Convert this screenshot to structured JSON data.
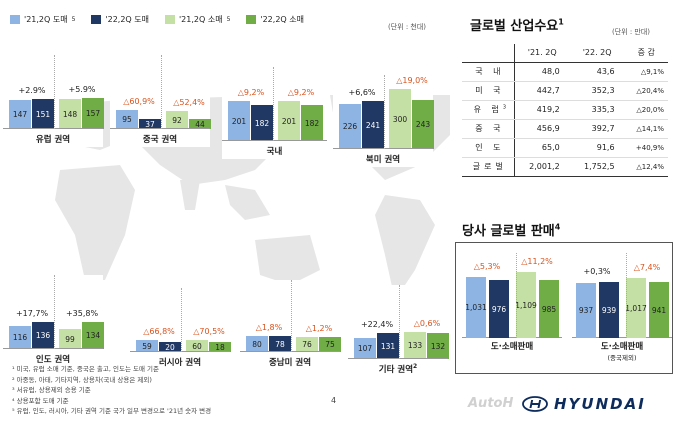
{
  "legend": {
    "items": [
      {
        "label": "'21,2Q 도매",
        "sup": "5",
        "color": "#8eb4e3"
      },
      {
        "label": "'22,2Q 도매",
        "sup": "",
        "color": "#1f3864"
      },
      {
        "label": "'21,2Q 소매",
        "sup": "5",
        "color": "#c5e0a5"
      },
      {
        "label": "'22,2Q 소매",
        "sup": "",
        "color": "#70ad47"
      }
    ]
  },
  "unit_left": "(단위 : 천대)",
  "regions": [
    {
      "name": "유럽 권역",
      "wholesale": [
        147,
        151
      ],
      "retail": [
        148,
        157
      ],
      "chg_w": "+2.9%",
      "chg_r": "+5.9%"
    },
    {
      "name": "중국 권역",
      "wholesale": [
        95,
        37
      ],
      "retail": [
        92,
        44
      ],
      "chg_w": "△60,9%",
      "chg_r": "△52,4%"
    },
    {
      "name": "국내",
      "wholesale": [
        201,
        182
      ],
      "retail": [
        201,
        182
      ],
      "chg_w": "△9,2%",
      "chg_r": "△9,2%"
    },
    {
      "name": "북미 권역",
      "wholesale": [
        226,
        241
      ],
      "retail": [
        300,
        243
      ],
      "chg_w": "+6,6%",
      "chg_r": "△19,0%"
    },
    {
      "name": "인도 권역",
      "wholesale": [
        116,
        136
      ],
      "retail": [
        99,
        134
      ],
      "chg_w": "+17,7%",
      "chg_r": "+35,8%"
    },
    {
      "name": "러시아 권역",
      "wholesale": [
        59,
        20
      ],
      "retail": [
        60,
        18
      ],
      "chg_w": "△66,8%",
      "chg_r": "△70,5%"
    },
    {
      "name": "중남미 권역",
      "wholesale": [
        80,
        78
      ],
      "retail": [
        76,
        75
      ],
      "chg_w": "△1,8%",
      "chg_r": "△1,2%"
    },
    {
      "name": "기타 권역",
      "name_sup": "2",
      "wholesale": [
        107,
        131
      ],
      "retail": [
        133,
        132
      ],
      "chg_w": "+22,4%",
      "chg_r": "△0,6%"
    }
  ],
  "demand": {
    "title": "글로벌 산업수요",
    "title_sup": "1",
    "unit": "(단위 : 만대)",
    "headers": [
      "",
      "'21. 2Q",
      "'22. 2Q",
      "증 감"
    ],
    "rows": [
      {
        "label": "국 내",
        "sup": "",
        "a": "48,0",
        "b": "43,6",
        "chg": "△9,1%"
      },
      {
        "label": "미 국",
        "sup": "",
        "a": "442,7",
        "b": "352,3",
        "chg": "△20,4%"
      },
      {
        "label": "유 럽",
        "sup": "3",
        "a": "419,2",
        "b": "335,3",
        "chg": "△20,0%"
      },
      {
        "label": "중 국",
        "sup": "",
        "a": "456,9",
        "b": "392,7",
        "chg": "△14,1%"
      },
      {
        "label": "인 도",
        "sup": "",
        "a": "65,0",
        "b": "91,6",
        "chg": "+40,9%"
      },
      {
        "label": "글로벌",
        "sup": "",
        "a": "2,001,2",
        "b": "1,752,5",
        "chg": "△12,4%"
      }
    ]
  },
  "sales": {
    "title": "당사 글로벌 판매",
    "title_sup": "4",
    "groups": [
      {
        "label": "도·소매판매",
        "sub": "",
        "values": [
          1031,
          976,
          1109,
          985
        ],
        "chg_w": "△5,3%",
        "chg_r": "△11,2%"
      },
      {
        "label": "도·소매판매",
        "sub": "(중국제외)",
        "values": [
          937,
          939,
          1017,
          941
        ],
        "chg_w": "+0,3%",
        "chg_r": "△7,4%"
      }
    ],
    "value_labels": [
      [
        "1,031",
        "976",
        "1,109",
        "985"
      ],
      [
        "937",
        "939",
        "1,017",
        "941"
      ]
    ]
  },
  "footnotes": [
    "¹ 미국, 유럽 소매 기준, 중국은 출고, 인도는 도매 기준",
    "² 아중동, 아태, 기타지역, 상용차(국내 상용은 제외)",
    "³ 서유럽, 상용제외 승용 기준",
    "⁴ 상용포함 도매 기준",
    "⁵ 유럽, 인도, 러시아, 기타 권역 기준 국가 일부 변경으로 '21년 숫자 변경"
  ],
  "page_number": "4",
  "logo_text": "HYUNDAI",
  "watermark": "AutoH"
}
